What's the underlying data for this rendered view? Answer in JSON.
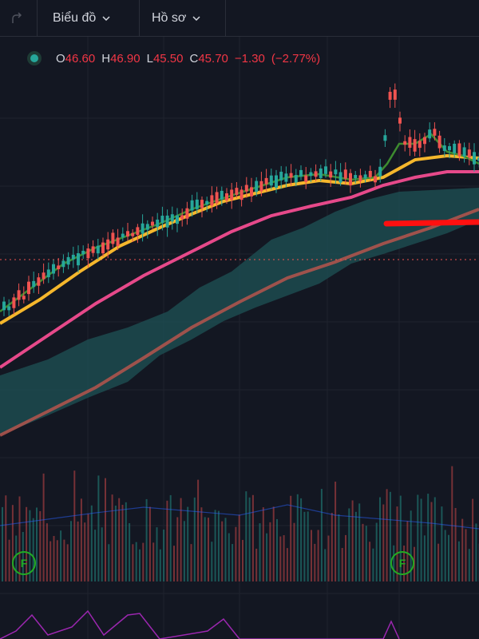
{
  "toolbar": {
    "redo_icon": "redo-icon",
    "chart_menu_label": "Biểu đồ",
    "profile_menu_label": "Hồ sơ",
    "chevron_icon": "chevron-down-icon"
  },
  "legend": {
    "status_icon": "status-dot-icon",
    "open_key": "O",
    "open_value": "46.60",
    "high_key": "H",
    "high_value": "46.90",
    "low_key": "L",
    "low_value": "45.50",
    "close_key": "C",
    "close_value": "45.70",
    "change": "−1.30",
    "change_percent": "(−2.77%)"
  },
  "markers": [
    {
      "label": "F"
    },
    {
      "label": "F"
    }
  ],
  "colors": {
    "background": "#131722",
    "up": "#26a69a",
    "down": "#ef5350",
    "ma_fast": "#3d8b2f",
    "ma_mid": "#f5b72c",
    "ma_slow": "#e6498a",
    "ma_long": "#b5554e",
    "cloud": "#1f5356",
    "support_line": "#ff1010",
    "marker": "#22ab23"
  }
}
